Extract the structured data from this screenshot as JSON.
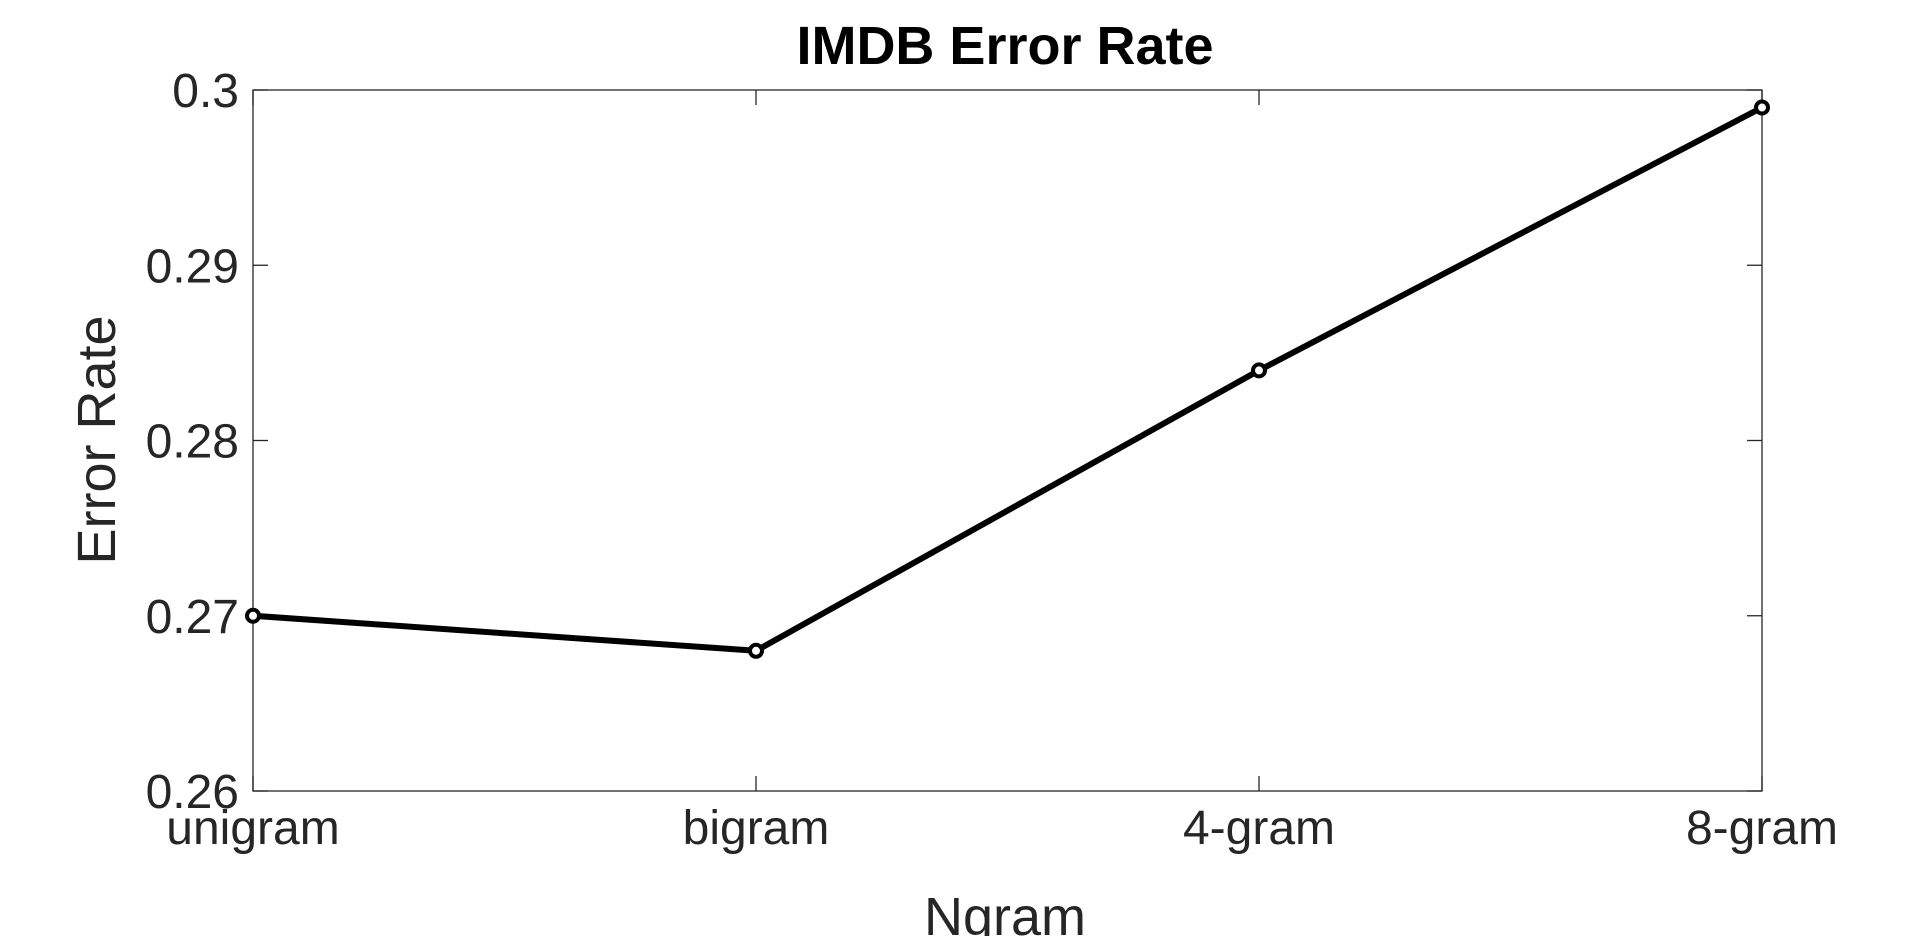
{
  "chart_data": {
    "type": "line",
    "title": "IMDB Error Rate",
    "xlabel": "Ngram",
    "ylabel": "Error Rate",
    "categories": [
      "unigram",
      "bigram",
      "4-gram",
      "8-gram"
    ],
    "series": [
      {
        "values": [
          0.27,
          0.268,
          0.284,
          0.299
        ]
      }
    ],
    "ylim": [
      0.26,
      0.3
    ],
    "yticks": [
      0.26,
      0.27,
      0.28,
      0.29,
      0.3
    ],
    "ytick_labels": [
      "0.26",
      "0.27",
      "0.28",
      "0.29",
      "0.3"
    ],
    "grid": false,
    "box": true,
    "colors": {
      "line": "#000000",
      "axis": "#262626",
      "background": "#ffffff"
    }
  }
}
